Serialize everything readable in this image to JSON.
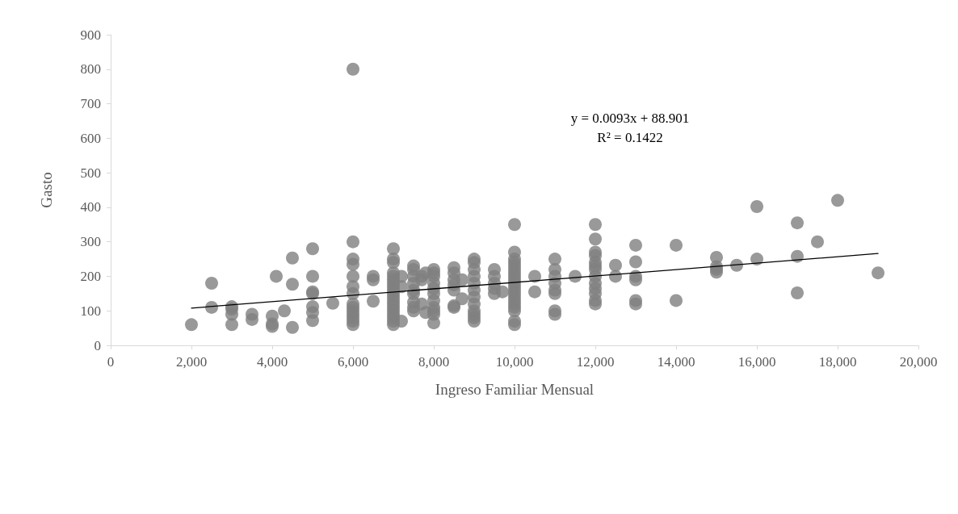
{
  "chart_data": {
    "type": "scatter",
    "xlabel": "Ingreso Familiar Mensual",
    "ylabel": "Gasto",
    "xlim": [
      0,
      20000
    ],
    "ylim": [
      0,
      900
    ],
    "xticks": [
      0,
      {
        "value": 2000,
        "label": "2,000"
      },
      {
        "value": 4000,
        "label": "4,000"
      },
      {
        "value": 6000,
        "label": "6,000"
      },
      {
        "value": 8000,
        "label": "8,000"
      },
      {
        "value": 10000,
        "label": "10,000"
      },
      {
        "value": 12000,
        "label": "12,000"
      },
      {
        "value": 14000,
        "label": "14,000"
      },
      {
        "value": 16000,
        "label": "16,000"
      },
      {
        "value": 18000,
        "label": "18,000"
      },
      {
        "value": 20000,
        "label": "20,000"
      }
    ],
    "yticks": [
      0,
      100,
      200,
      300,
      400,
      500,
      600,
      700,
      800,
      900
    ],
    "grid": false,
    "marker": "circle",
    "annotations": [
      "y = 0.0093x + 88.901",
      "R² = 0.1422"
    ],
    "series": [
      {
        "color": "#7f7f7f",
        "x": [
          2000,
          2500,
          2500,
          3000,
          3000,
          3000,
          3000,
          3500,
          3500,
          4000,
          4000,
          4000,
          4100,
          4300,
          4500,
          4500,
          4500,
          5000,
          5000,
          5000,
          5000,
          5000,
          5000,
          5000,
          5500,
          6000,
          6000,
          6000,
          6000,
          6000,
          6000,
          6000,
          6000,
          6000,
          6000,
          6000,
          6000,
          6000,
          6000,
          6500,
          6500,
          6500,
          7000,
          7000,
          7000,
          7000,
          7000,
          7000,
          7000,
          7000,
          7000,
          7000,
          7000,
          7000,
          7000,
          7000,
          7000,
          7000,
          7000,
          7000,
          7000,
          7200,
          7200,
          7200,
          7500,
          7500,
          7500,
          7500,
          7500,
          7500,
          7500,
          7500,
          7500,
          7700,
          7700,
          7700,
          7800,
          7800,
          8000,
          8000,
          8000,
          8000,
          8000,
          8000,
          8000,
          8000,
          8000,
          8000,
          8000,
          8500,
          8500,
          8500,
          8500,
          8500,
          8500,
          8500,
          8700,
          8700,
          9000,
          9000,
          9000,
          9000,
          9000,
          9000,
          9000,
          9000,
          9000,
          9000,
          9000,
          9000,
          9500,
          9500,
          9500,
          9500,
          9500,
          9700,
          10000,
          10000,
          10000,
          10000,
          10000,
          10000,
          10000,
          10000,
          10000,
          10000,
          10000,
          10000,
          10000,
          10000,
          10000,
          10000,
          10000,
          10000,
          10000,
          10000,
          10500,
          10500,
          11000,
          11000,
          11000,
          11000,
          11000,
          11000,
          11000,
          11000,
          11500,
          12000,
          12000,
          12000,
          12000,
          12000,
          12000,
          12000,
          12000,
          12000,
          12000,
          12000,
          12000,
          12000,
          12500,
          12500,
          13000,
          13000,
          13000,
          13000,
          13000,
          13000,
          14000,
          14000,
          15000,
          15000,
          15000,
          15000,
          15500,
          16000,
          16000,
          17000,
          17000,
          17000,
          17500,
          18000,
          19000
        ],
        "values": [
          60,
          180,
          110,
          112,
          105,
          90,
          60,
          90,
          75,
          85,
          62,
          55,
          200,
          100,
          253,
          177,
          52,
          280,
          200,
          155,
          150,
          112,
          95,
          72,
          122,
          800,
          300,
          250,
          235,
          200,
          170,
          150,
          120,
          110,
          100,
          90,
          80,
          70,
          60,
          200,
          190,
          128,
          280,
          250,
          240,
          210,
          200,
          190,
          180,
          170,
          160,
          150,
          140,
          130,
          120,
          110,
          100,
          90,
          80,
          70,
          60,
          200,
          170,
          70,
          230,
          220,
          200,
          180,
          160,
          150,
          125,
          110,
          100,
          200,
          190,
          120,
          210,
          95,
          220,
          210,
          200,
          180,
          165,
          150,
          130,
          110,
          100,
          90,
          65,
          225,
          210,
          190,
          175,
          160,
          115,
          110,
          190,
          135,
          250,
          240,
          220,
          200,
          180,
          160,
          140,
          120,
          100,
          90,
          80,
          70,
          220,
          200,
          180,
          165,
          150,
          155,
          350,
          270,
          250,
          240,
          230,
          220,
          210,
          200,
          190,
          180,
          170,
          160,
          150,
          140,
          130,
          120,
          110,
          100,
          70,
          60,
          200,
          155,
          250,
          220,
          200,
          180,
          160,
          150,
          100,
          90,
          200,
          350,
          308,
          270,
          260,
          240,
          230,
          220,
          200,
          180,
          165,
          150,
          130,
          120,
          232,
          200,
          290,
          242,
          200,
          190,
          130,
          120,
          290,
          130,
          255,
          228,
          220,
          212,
          232,
          402,
          250,
          355,
          258,
          152,
          300,
          420,
          210
        ]
      },
      {
        "type": "line",
        "color": "#000000",
        "marker": "none",
        "line_style": "solid",
        "x": [
          2000,
          19000
        ],
        "values": [
          108,
          266
        ]
      }
    ]
  }
}
